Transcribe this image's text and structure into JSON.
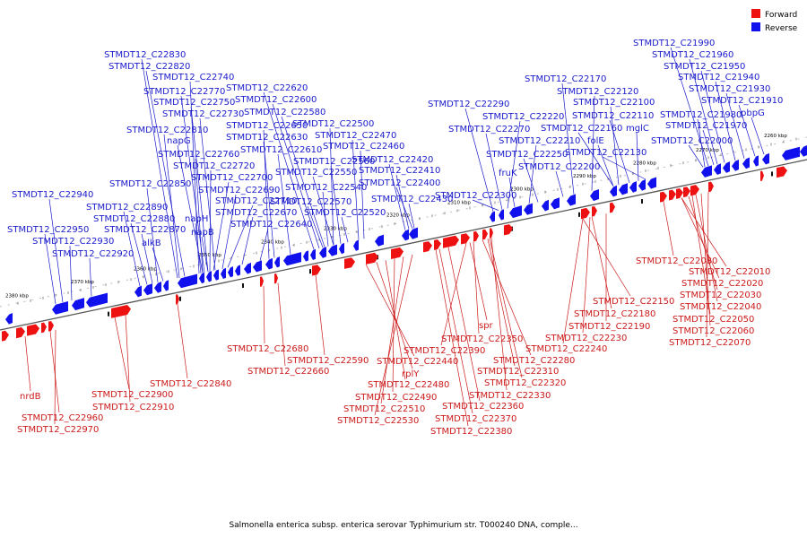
{
  "legend": {
    "forward_label": "Forward",
    "reverse_label": "Reverse",
    "forward_color": "#ee1111",
    "reverse_color": "#1111ee"
  },
  "caption": "Salmonella enterica subsp. enterica serovar Typhimurium str. T000240 DNA, comple...",
  "ticks": [
    "2260 kbp",
    "2270 kbp",
    "2280 kbp",
    "2290 kbp",
    "2300 kbp",
    "2310 kbp",
    "2320 kbp",
    "2330 kbp",
    "2340 kbp",
    "2350 kbp",
    "2360 kbp",
    "2370 kbp",
    "2380 kbp"
  ],
  "reverse_labels": [
    "STMDT12_C21990",
    "STMDT12_C21960",
    "STMDT12_C21950",
    "STMDT12_C21940",
    "STMDT12_C21930",
    "STMDT12_C21910",
    "STMDT12_C21980",
    "pbpG",
    "STMDT12_C21970",
    "STMDT12_C22000",
    "STMDT12_C22170",
    "STMDT12_C22120",
    "STMDT12_C22100",
    "STMDT12_C22110",
    "mglC",
    "STMDT12_C22160",
    "folE",
    "STMDT12_C22130",
    "STMDT12_C22290",
    "STMDT12_C22220",
    "STMDT12_C22270",
    "STMDT12_C22210",
    "STMDT12_C22250",
    "STMDT12_C22200",
    "fruK",
    "STMDT12_C22300",
    "STMDT12_C22830",
    "STMDT12_C22820",
    "STMDT12_C22740",
    "STMDT12_C22770",
    "STMDT12_C22620",
    "STMDT12_C22750",
    "STMDT12_C22600",
    "STMDT12_C22730",
    "STMDT12_C22580",
    "STMDT12_C22650",
    "STMDT12_C22500",
    "STMDT12_C22810",
    "STMDT12_C22630",
    "STMDT12_C22470",
    "napG",
    "STMDT12_C22610",
    "STMDT12_C22460",
    "STMDT12_C22760",
    "STMDT12_C22560",
    "STMDT12_C22420",
    "STMDT12_C22720",
    "STMDT12_C22550",
    "STMDT12_C22410",
    "STMDT12_C22700",
    "STMDT12_C22400",
    "STMDT12_C22850",
    "STMDT12_C22690",
    "STMDT12_C22540",
    "STMDT12_C22430",
    "STMDT12_C22940",
    "STMDT12_C22710",
    "STMDT12_C22570",
    "STMDT12_C22890",
    "STMDT12_C22670",
    "STMDT12_C22520",
    "STMDT12_C22880",
    "napH",
    "STMDT12_C22640",
    "STMDT12_C22950",
    "STMDT12_C22870",
    "napB",
    "STMDT12_C22930",
    "alkB",
    "STMDT12_C22920"
  ],
  "forward_labels": [
    "STMDT12_C22080",
    "STMDT12_C22010",
    "STMDT12_C22020",
    "STMDT12_C22030",
    "STMDT12_C22040",
    "STMDT12_C22050",
    "STMDT12_C22060",
    "STMDT12_C22070",
    "STMDT12_C22150",
    "STMDT12_C22180",
    "STMDT12_C22190",
    "STMDT12_C22230",
    "STMDT12_C22240",
    "spr",
    "STMDT12_C22350",
    "STMDT12_C22390",
    "STMDT12_C22280",
    "STMDT12_C22310",
    "STMDT12_C22320",
    "STMDT12_C22330",
    "STMDT12_C22360",
    "STMDT12_C22370",
    "STMDT12_C22380",
    "STMDT12_C22680",
    "STMDT12_C22590",
    "STMDT12_C22660",
    "STMDT12_C22440",
    "rplY",
    "STMDT12_C22480",
    "STMDT12_C22490",
    "STMDT12_C22510",
    "STMDT12_C22530",
    "STMDT12_C22840",
    "STMDT12_C22900",
    "STMDT12_C22910",
    "nrdB",
    "STMDT12_C22960",
    "STMDT12_C22970"
  ]
}
